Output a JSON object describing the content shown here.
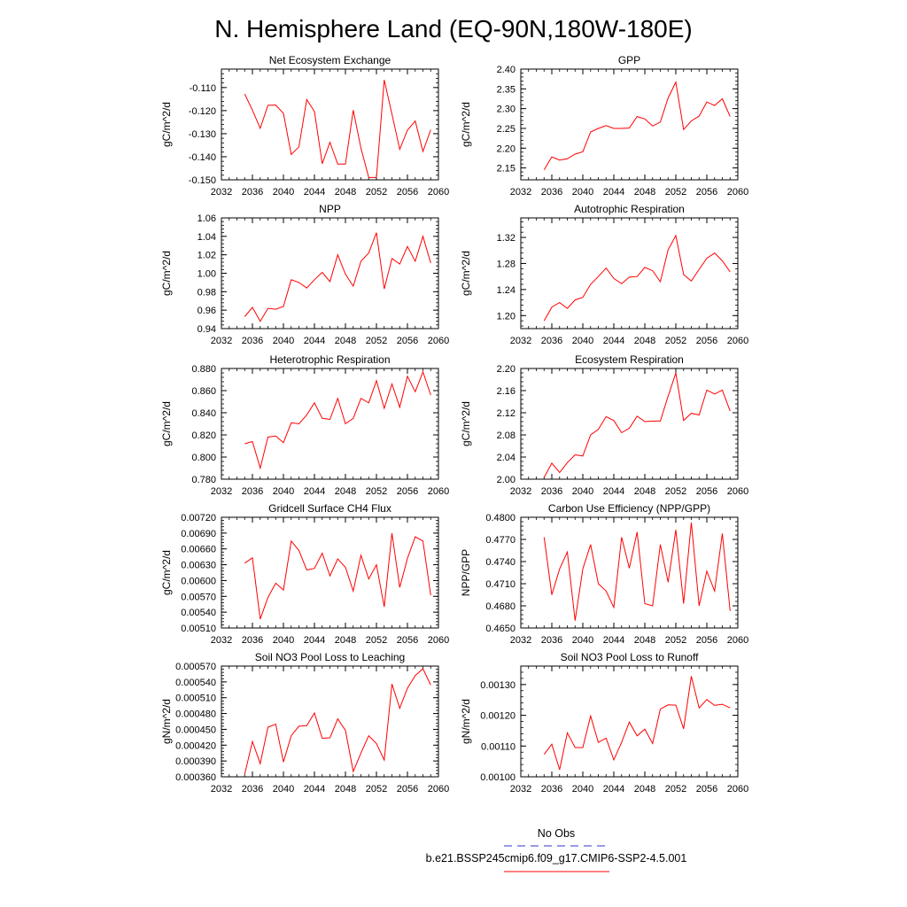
{
  "figure": {
    "title": "N. Hemisphere Land (EQ-90N,180W-180E)",
    "legend": {
      "obs_label": "No Obs",
      "model_label": "b.e21.BSSP245cmip6.f09_g17.CMIP6-SSP2-4.5.001",
      "obs_color": "#3333cc",
      "model_color": "#ff0000"
    }
  },
  "chart_data": [
    {
      "type": "line",
      "title": "Net Ecosystem Exchange",
      "ylabel": "gC/m^2/d",
      "xlim": [
        2032,
        2060
      ],
      "ylim": [
        -0.15,
        -0.102
      ],
      "xticks": [
        2032,
        2036,
        2040,
        2044,
        2048,
        2052,
        2056,
        2060
      ],
      "xtick_labels": [
        "2032",
        "2036",
        "2040",
        "2044",
        "2048",
        "2052",
        "2056",
        "2060"
      ],
      "yticks": [
        -0.15,
        -0.14,
        -0.13,
        -0.12,
        -0.11
      ],
      "ytick_labels": [
        "-0.150",
        "-0.140",
        "-0.130",
        "-0.120",
        "-0.110"
      ],
      "x": [
        2035,
        2036,
        2037,
        2038,
        2039,
        2040,
        2041,
        2042,
        2043,
        2044,
        2045,
        2046,
        2047,
        2048,
        2049,
        2050,
        2051,
        2052,
        2053,
        2054,
        2055,
        2056,
        2057,
        2058,
        2059
      ],
      "series": [
        {
          "color": "#ff0000",
          "values": [
            -0.1128,
            -0.1198,
            -0.1277,
            -0.1177,
            -0.1176,
            -0.1212,
            -0.139,
            -0.1357,
            -0.1152,
            -0.1204,
            -0.143,
            -0.1337,
            -0.1432,
            -0.1432,
            -0.1198,
            -0.1363,
            -0.149,
            -0.149,
            -0.1067,
            -0.1215,
            -0.1368,
            -0.1285,
            -0.1245,
            -0.1377,
            -0.1283
          ]
        }
      ]
    },
    {
      "type": "line",
      "title": "GPP",
      "ylabel": "gC/m^2/d",
      "xlim": [
        2032,
        2060
      ],
      "ylim": [
        2.12,
        2.4
      ],
      "xticks": [
        2032,
        2036,
        2040,
        2044,
        2048,
        2052,
        2056,
        2060
      ],
      "xtick_labels": [
        "2032",
        "2036",
        "2040",
        "2044",
        "2048",
        "2052",
        "2056",
        "2060"
      ],
      "yticks": [
        2.15,
        2.2,
        2.25,
        2.3,
        2.35,
        2.4
      ],
      "ytick_labels": [
        "2.15",
        "2.20",
        "2.25",
        "2.30",
        "2.35",
        "2.40"
      ],
      "x": [
        2035,
        2036,
        2037,
        2038,
        2039,
        2040,
        2041,
        2042,
        2043,
        2044,
        2045,
        2046,
        2047,
        2048,
        2049,
        2050,
        2051,
        2052,
        2053,
        2054,
        2055,
        2056,
        2057,
        2058,
        2059
      ],
      "series": [
        {
          "color": "#ff0000",
          "values": [
            2.145,
            2.178,
            2.17,
            2.173,
            2.185,
            2.191,
            2.241,
            2.25,
            2.257,
            2.25,
            2.25,
            2.251,
            2.28,
            2.274,
            2.256,
            2.266,
            2.327,
            2.367,
            2.247,
            2.269,
            2.281,
            2.317,
            2.308,
            2.325,
            2.28
          ]
        }
      ]
    },
    {
      "type": "line",
      "title": "NPP",
      "ylabel": "gC/m^2/d",
      "xlim": [
        2032,
        2060
      ],
      "ylim": [
        0.94,
        1.06
      ],
      "xticks": [
        2032,
        2036,
        2040,
        2044,
        2048,
        2052,
        2056,
        2060
      ],
      "xtick_labels": [
        "2032",
        "2036",
        "2040",
        "2044",
        "2048",
        "2052",
        "2056",
        "2060"
      ],
      "yticks": [
        0.94,
        0.96,
        0.98,
        1.0,
        1.02,
        1.04,
        1.06
      ],
      "ytick_labels": [
        "0.94",
        "0.96",
        "0.98",
        "1.00",
        "1.02",
        "1.04",
        "1.06"
      ],
      "x": [
        2035,
        2036,
        2037,
        2038,
        2039,
        2040,
        2041,
        2042,
        2043,
        2044,
        2045,
        2046,
        2047,
        2048,
        2049,
        2050,
        2051,
        2052,
        2053,
        2054,
        2055,
        2056,
        2057,
        2058,
        2059
      ],
      "series": [
        {
          "color": "#ff0000",
          "values": [
            0.953,
            0.963,
            0.948,
            0.962,
            0.961,
            0.964,
            0.993,
            0.99,
            0.984,
            0.993,
            1.001,
            0.991,
            1.02,
            0.999,
            0.986,
            1.013,
            1.022,
            1.044,
            0.983,
            1.016,
            1.01,
            1.029,
            1.013,
            1.04,
            1.011
          ]
        }
      ]
    },
    {
      "type": "line",
      "title": "Autotrophic Respiration",
      "ylabel": "gC/m^2/d",
      "xlim": [
        2032,
        2060
      ],
      "ylim": [
        1.18,
        1.35
      ],
      "xticks": [
        2032,
        2036,
        2040,
        2044,
        2048,
        2052,
        2056,
        2060
      ],
      "xtick_labels": [
        "2032",
        "2036",
        "2040",
        "2044",
        "2048",
        "2052",
        "2056",
        "2060"
      ],
      "yticks": [
        1.2,
        1.24,
        1.28,
        1.32
      ],
      "ytick_labels": [
        "1.20",
        "1.24",
        "1.28",
        "1.32"
      ],
      "x": [
        2035,
        2036,
        2037,
        2038,
        2039,
        2040,
        2041,
        2042,
        2043,
        2044,
        2045,
        2046,
        2047,
        2048,
        2049,
        2050,
        2051,
        2052,
        2053,
        2054,
        2055,
        2056,
        2057,
        2058,
        2059
      ],
      "series": [
        {
          "color": "#ff0000",
          "values": [
            1.192,
            1.213,
            1.22,
            1.211,
            1.224,
            1.228,
            1.248,
            1.26,
            1.273,
            1.257,
            1.249,
            1.259,
            1.26,
            1.274,
            1.269,
            1.252,
            1.301,
            1.323,
            1.263,
            1.253,
            1.271,
            1.288,
            1.296,
            1.284,
            1.267
          ]
        }
      ]
    },
    {
      "type": "line",
      "title": "Heterotrophic Respiration",
      "ylabel": "gC/m^2/d",
      "xlim": [
        2032,
        2060
      ],
      "ylim": [
        0.78,
        0.88
      ],
      "xticks": [
        2032,
        2036,
        2040,
        2044,
        2048,
        2052,
        2056,
        2060
      ],
      "xtick_labels": [
        "2032",
        "2036",
        "2040",
        "2044",
        "2048",
        "2052",
        "2056",
        "2060"
      ],
      "yticks": [
        0.78,
        0.8,
        0.82,
        0.84,
        0.86,
        0.88
      ],
      "ytick_labels": [
        "0.780",
        "0.800",
        "0.820",
        "0.840",
        "0.860",
        "0.880"
      ],
      "x": [
        2035,
        2036,
        2037,
        2038,
        2039,
        2040,
        2041,
        2042,
        2043,
        2044,
        2045,
        2046,
        2047,
        2048,
        2049,
        2050,
        2051,
        2052,
        2053,
        2054,
        2055,
        2056,
        2057,
        2058,
        2059
      ],
      "series": [
        {
          "color": "#ff0000",
          "values": [
            0.812,
            0.814,
            0.79,
            0.818,
            0.819,
            0.813,
            0.831,
            0.83,
            0.838,
            0.849,
            0.835,
            0.834,
            0.853,
            0.83,
            0.835,
            0.853,
            0.849,
            0.869,
            0.844,
            0.866,
            0.845,
            0.873,
            0.859,
            0.877,
            0.856
          ]
        }
      ]
    },
    {
      "type": "line",
      "title": "Ecosystem Respiration",
      "ylabel": "gC/m^2/d",
      "xlim": [
        2032,
        2060
      ],
      "ylim": [
        2.0,
        2.2
      ],
      "xticks": [
        2032,
        2036,
        2040,
        2044,
        2048,
        2052,
        2056,
        2060
      ],
      "xtick_labels": [
        "2032",
        "2036",
        "2040",
        "2044",
        "2048",
        "2052",
        "2056",
        "2060"
      ],
      "yticks": [
        2.0,
        2.04,
        2.08,
        2.12,
        2.16,
        2.2
      ],
      "ytick_labels": [
        "2.00",
        "2.04",
        "2.08",
        "2.12",
        "2.16",
        "2.20"
      ],
      "x": [
        2035,
        2036,
        2037,
        2038,
        2039,
        2040,
        2041,
        2042,
        2043,
        2044,
        2045,
        2046,
        2047,
        2048,
        2049,
        2050,
        2051,
        2052,
        2053,
        2054,
        2055,
        2056,
        2057,
        2058,
        2059
      ],
      "series": [
        {
          "color": "#ff0000",
          "values": [
            2.003,
            2.029,
            2.012,
            2.03,
            2.044,
            2.042,
            2.08,
            2.09,
            2.113,
            2.106,
            2.084,
            2.092,
            2.114,
            2.104,
            2.105,
            2.105,
            2.15,
            2.192,
            2.106,
            2.119,
            2.116,
            2.161,
            2.154,
            2.161,
            2.123
          ]
        }
      ]
    },
    {
      "type": "line",
      "title": "Gridcell Surface CH4 Flux",
      "ylabel": "gC/m^2/d",
      "xlim": [
        2032,
        2060
      ],
      "ylim": [
        0.0051,
        0.0072
      ],
      "xticks": [
        2032,
        2036,
        2040,
        2044,
        2048,
        2052,
        2056,
        2060
      ],
      "xtick_labels": [
        "2032",
        "2036",
        "2040",
        "2044",
        "2048",
        "2052",
        "2056",
        "2060"
      ],
      "yticks": [
        0.0051,
        0.0054,
        0.0057,
        0.006,
        0.0063,
        0.0066,
        0.0069,
        0.0072
      ],
      "ytick_labels": [
        "0.00510",
        "0.00540",
        "0.00570",
        "0.00600",
        "0.00630",
        "0.00660",
        "0.00690",
        "0.00720"
      ],
      "x": [
        2035,
        2036,
        2037,
        2038,
        2039,
        2040,
        2041,
        2042,
        2043,
        2044,
        2045,
        2046,
        2047,
        2048,
        2049,
        2050,
        2051,
        2052,
        2053,
        2054,
        2055,
        2056,
        2057,
        2058,
        2059
      ],
      "series": [
        {
          "color": "#ff0000",
          "values": [
            0.00633,
            0.00643,
            0.00527,
            0.00568,
            0.00595,
            0.00582,
            0.00675,
            0.00657,
            0.0062,
            0.00623,
            0.00652,
            0.00609,
            0.00641,
            0.00625,
            0.0058,
            0.00648,
            0.00603,
            0.0063,
            0.0055,
            0.0069,
            0.00587,
            0.00642,
            0.00683,
            0.00675,
            0.00572
          ]
        }
      ]
    },
    {
      "type": "line",
      "title": "Carbon Use Efficiency (NPP/GPP)",
      "ylabel": "NPP/GPP",
      "xlim": [
        2032,
        2060
      ],
      "ylim": [
        0.465,
        0.48
      ],
      "xticks": [
        2032,
        2036,
        2040,
        2044,
        2048,
        2052,
        2056,
        2060
      ],
      "xtick_labels": [
        "2032",
        "2036",
        "2040",
        "2044",
        "2048",
        "2052",
        "2056",
        "2060"
      ],
      "yticks": [
        0.465,
        0.468,
        0.471,
        0.474,
        0.477,
        0.48
      ],
      "ytick_labels": [
        "0.4650",
        "0.4680",
        "0.4710",
        "0.4740",
        "0.4770",
        "0.4800"
      ],
      "x": [
        2035,
        2036,
        2037,
        2038,
        2039,
        2040,
        2041,
        2042,
        2043,
        2044,
        2045,
        2046,
        2047,
        2048,
        2049,
        2050,
        2051,
        2052,
        2053,
        2054,
        2055,
        2056,
        2057,
        2058,
        2059
      ],
      "series": [
        {
          "color": "#ff0000",
          "values": [
            0.4773,
            0.4695,
            0.473,
            0.4753,
            0.466,
            0.473,
            0.4763,
            0.471,
            0.47,
            0.4678,
            0.4773,
            0.4731,
            0.478,
            0.4683,
            0.468,
            0.4763,
            0.4712,
            0.4783,
            0.4683,
            0.4793,
            0.468,
            0.4727,
            0.47,
            0.4778,
            0.4673
          ]
        }
      ]
    },
    {
      "type": "line",
      "title": "Soil NO3 Pool Loss to Leaching",
      "ylabel": "gN/m^2/d",
      "xlim": [
        2032,
        2060
      ],
      "ylim": [
        0.00036,
        0.00057
      ],
      "xticks": [
        2032,
        2036,
        2040,
        2044,
        2048,
        2052,
        2056,
        2060
      ],
      "xtick_labels": [
        "2032",
        "2036",
        "2040",
        "2044",
        "2048",
        "2052",
        "2056",
        "2060"
      ],
      "yticks": [
        0.00036,
        0.00039,
        0.00042,
        0.00045,
        0.00048,
        0.00051,
        0.00054,
        0.00057
      ],
      "ytick_labels": [
        "0.000360",
        "0.000390",
        "0.000420",
        "0.000450",
        "0.000480",
        "0.000510",
        "0.000540",
        "0.000570"
      ],
      "x": [
        2035,
        2036,
        2037,
        2038,
        2039,
        2040,
        2041,
        2042,
        2043,
        2044,
        2045,
        2046,
        2047,
        2048,
        2049,
        2050,
        2051,
        2052,
        2053,
        2054,
        2055,
        2056,
        2057,
        2058,
        2059
      ],
      "series": [
        {
          "color": "#ff0000",
          "values": [
            0.000365,
            0.000427,
            0.000385,
            0.000454,
            0.00046,
            0.000388,
            0.000438,
            0.000456,
            0.000457,
            0.000481,
            0.000433,
            0.000434,
            0.00047,
            0.000448,
            0.00037,
            0.000405,
            0.000438,
            0.000423,
            0.000392,
            0.000536,
            0.00049,
            0.000528,
            0.000552,
            0.000565,
            0.000534
          ]
        }
      ]
    },
    {
      "type": "line",
      "title": "Soil NO3 Pool Loss to Runoff",
      "ylabel": "gN/m^2/d",
      "xlim": [
        2032,
        2060
      ],
      "ylim": [
        0.001,
        0.00136
      ],
      "xticks": [
        2032,
        2036,
        2040,
        2044,
        2048,
        2052,
        2056,
        2060
      ],
      "xtick_labels": [
        "2032",
        "2036",
        "2040",
        "2044",
        "2048",
        "2052",
        "2056",
        "2060"
      ],
      "yticks": [
        0.001,
        0.0011,
        0.0012,
        0.0013
      ],
      "ytick_labels": [
        "0.00100",
        "0.00110",
        "0.00120",
        "0.00130"
      ],
      "x": [
        2035,
        2036,
        2037,
        2038,
        2039,
        2040,
        2041,
        2042,
        2043,
        2044,
        2045,
        2046,
        2047,
        2048,
        2049,
        2050,
        2051,
        2052,
        2053,
        2054,
        2055,
        2056,
        2057,
        2058,
        2059
      ],
      "series": [
        {
          "color": "#ff0000",
          "values": [
            0.001073,
            0.001106,
            0.001023,
            0.001143,
            0.001095,
            0.001095,
            0.001198,
            0.001112,
            0.001126,
            0.001055,
            0.001112,
            0.001178,
            0.001133,
            0.001155,
            0.001108,
            0.00122,
            0.001234,
            0.001233,
            0.001156,
            0.001327,
            0.001224,
            0.001251,
            0.001232,
            0.001236,
            0.001224
          ]
        }
      ]
    }
  ]
}
